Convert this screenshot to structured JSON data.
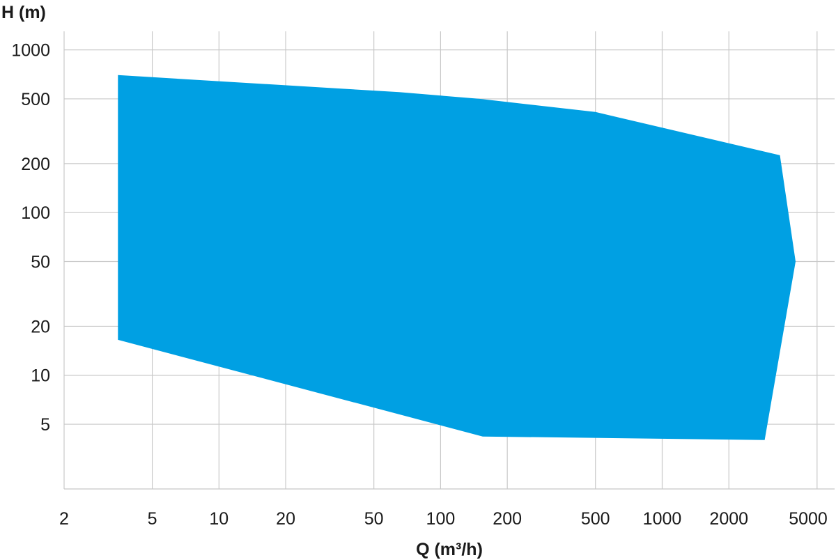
{
  "chart_data": {
    "type": "area",
    "title": "",
    "xlabel": "Q (m³/h)",
    "ylabel": "H (m)",
    "xscale": "log",
    "yscale": "log",
    "xlim": [
      2,
      6000
    ],
    "ylim": [
      2,
      1300
    ],
    "xticks": [
      2,
      5,
      10,
      20,
      50,
      100,
      200,
      500,
      1000,
      2000,
      5000
    ],
    "yticks": [
      5,
      10,
      20,
      50,
      100,
      200,
      500,
      1000
    ],
    "grid": true,
    "fill_color": "#00a0e3",
    "grid_color": "#c8c8c8",
    "series": [
      {
        "values": [
          {
            "x": 3.5,
            "y": 700
          },
          {
            "x": 65,
            "y": 550
          },
          {
            "x": 150,
            "y": 500
          },
          {
            "x": 500,
            "y": 415
          },
          {
            "x": 3400,
            "y": 225
          },
          {
            "x": 4000,
            "y": 50
          },
          {
            "x": 2900,
            "y": 4
          },
          {
            "x": 155,
            "y": 4.2
          },
          {
            "x": 3.5,
            "y": 16.5
          }
        ]
      }
    ]
  }
}
